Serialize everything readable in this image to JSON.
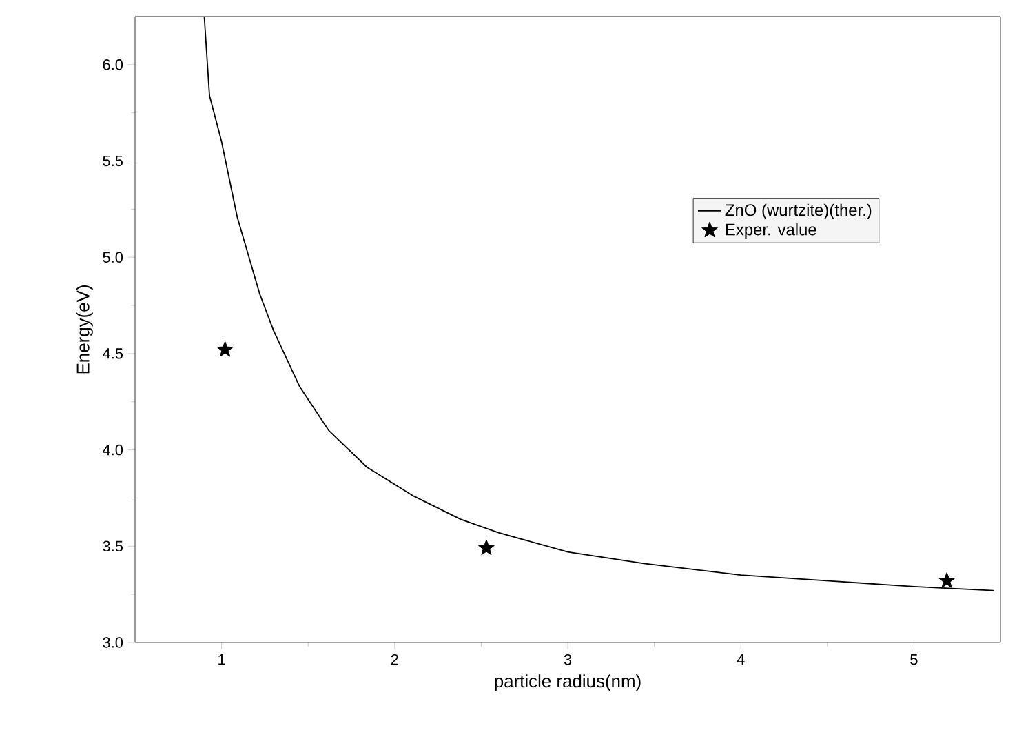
{
  "chart_data": {
    "type": "line",
    "xlabel": "particle radius(nm)",
    "ylabel": "Energy(eV)",
    "xlim": [
      0.5,
      5.5
    ],
    "ylim": [
      3.0,
      6.25
    ],
    "xticks": [
      1,
      2,
      3,
      4,
      5
    ],
    "yticks": [
      {
        "value": 3.0,
        "label": "3.0"
      },
      3.5,
      {
        "value": 4.0,
        "label": "4.0"
      },
      4.5,
      {
        "value": 5.0,
        "label": "5.0"
      },
      5.5,
      {
        "value": 6.0,
        "label": "6.0"
      }
    ],
    "grid": false,
    "legend": "top right",
    "series": [
      {
        "name": "ZnO (wurtzite)(ther.)",
        "type": "line",
        "color": "#000000",
        "marker": "none",
        "line_style": "solid",
        "x": [
          0.9,
          0.93,
          1.0,
          1.09,
          1.22,
          1.3,
          1.45,
          1.62,
          1.84,
          2.11,
          2.38,
          2.6,
          3.0,
          3.44,
          4.0,
          4.51,
          5.0,
          5.46
        ],
        "values": [
          6.25,
          5.84,
          5.6,
          5.21,
          4.81,
          4.62,
          4.33,
          4.1,
          3.91,
          3.76,
          3.64,
          3.57,
          3.47,
          3.41,
          3.35,
          3.32,
          3.29,
          3.27
        ]
      },
      {
        "name": "Exper. value",
        "type": "scatter",
        "color": "#000000",
        "marker": "star",
        "x": [
          1.02,
          2.53,
          5.19
        ],
        "values": [
          4.52,
          3.49,
          3.32
        ]
      }
    ]
  }
}
